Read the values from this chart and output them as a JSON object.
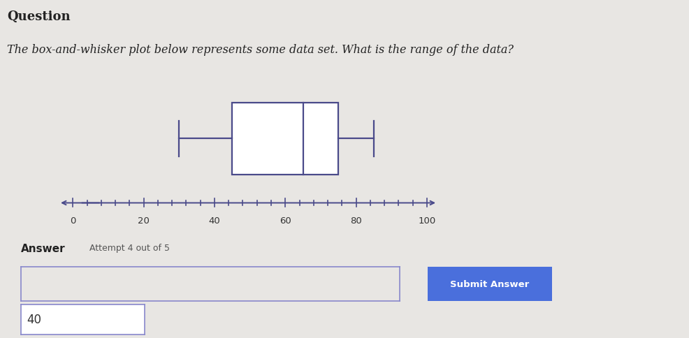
{
  "title_question": "Question",
  "question_text": "The box-and-whisker plot below represents some data set. What is the range of the data?",
  "whisker_min": 30,
  "q1": 45,
  "median": 65,
  "q3": 75,
  "whisker_max": 85,
  "axis_min": 0,
  "axis_max": 100,
  "axis_ticks": [
    0,
    20,
    40,
    60,
    80,
    100
  ],
  "box_color": "white",
  "box_edge_color": "#4a4a8a",
  "line_color": "#4a4a8a",
  "background_color": "#e8e6e3",
  "answer_value": "40",
  "answer_label": "Answer",
  "attempt_text": "Attempt 4 out of 5",
  "submit_text": "Submit Answer",
  "submit_button_color": "#4a6fdc",
  "input_border_color": "#8888cc"
}
